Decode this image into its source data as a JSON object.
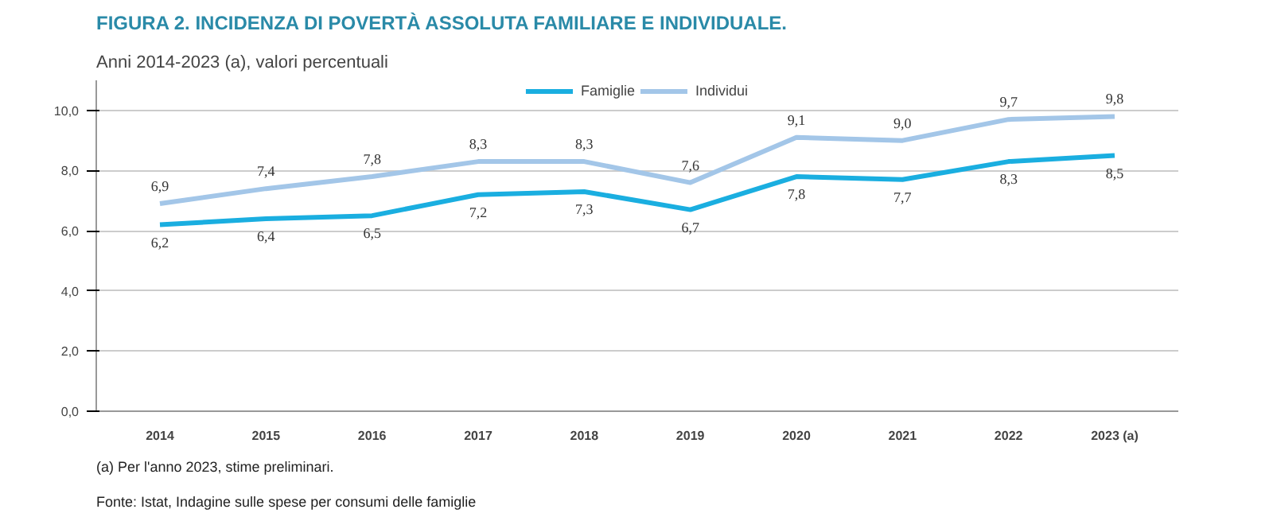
{
  "chart_data": {
    "type": "line",
    "title": "FIGURA 2. INCIDENZA DI POVERTÀ ASSOLUTA FAMILIARE E INDIVIDUALE.",
    "subtitle": "Anni 2014-2023 (a), valori percentuali",
    "categories": [
      "2014",
      "2015",
      "2016",
      "2017",
      "2018",
      "2019",
      "2020",
      "2021",
      "2022",
      "2023 (a)"
    ],
    "series": [
      {
        "name": "Famiglie",
        "color": "#1aaee0",
        "values": [
          6.2,
          6.4,
          6.5,
          7.2,
          7.3,
          6.7,
          7.8,
          7.7,
          8.3,
          8.5
        ],
        "value_labels": [
          "6,2",
          "6,4",
          "6,5",
          "7,2",
          "7,3",
          "6,7",
          "7,8",
          "7,7",
          "8,3",
          "8,5"
        ]
      },
      {
        "name": "Individui",
        "color": "#a3c6e8",
        "values": [
          6.9,
          7.4,
          7.8,
          8.3,
          8.3,
          7.6,
          9.1,
          9.0,
          9.7,
          9.8
        ],
        "value_labels": [
          "6,9",
          "7,4",
          "7,8",
          "8,3",
          "8,3",
          "7,6",
          "9,1",
          "9,0",
          "9,7",
          "9,8"
        ]
      }
    ],
    "ylim": [
      0,
      11
    ],
    "yticks": [
      {
        "value": 0,
        "label": "0,0"
      },
      {
        "value": 2,
        "label": "2,0"
      },
      {
        "value": 4,
        "label": "4,0"
      },
      {
        "value": 6,
        "label": "6,0"
      },
      {
        "value": 8,
        "label": "8,0"
      },
      {
        "value": 10,
        "label": "10,0"
      }
    ],
    "grid": "y",
    "legend": "top",
    "marker": "none",
    "line_style": "solid",
    "annotations": [
      "(a) Per l'anno 2023, stime preliminari.",
      "Fonte: Istat, Indagine sulle spese per consumi delle famiglie"
    ]
  }
}
